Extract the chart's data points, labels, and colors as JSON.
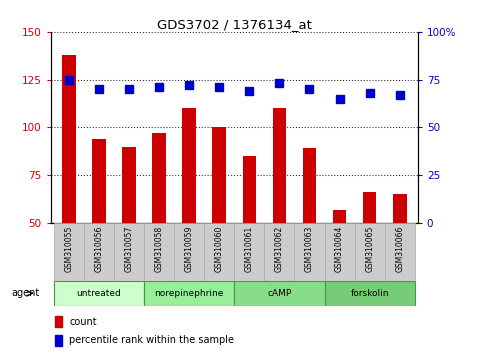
{
  "title": "GDS3702 / 1376134_at",
  "samples": [
    "GSM310055",
    "GSM310056",
    "GSM310057",
    "GSM310058",
    "GSM310059",
    "GSM310060",
    "GSM310061",
    "GSM310062",
    "GSM310063",
    "GSM310064",
    "GSM310065",
    "GSM310066"
  ],
  "counts": [
    138,
    94,
    90,
    97,
    110,
    100,
    85,
    110,
    89,
    57,
    66,
    65
  ],
  "percentiles": [
    75,
    70,
    70,
    71,
    72,
    71,
    69,
    73,
    70,
    65,
    68,
    67
  ],
  "bar_color": "#cc0000",
  "dot_color": "#0000cc",
  "ylim_left": [
    50,
    150
  ],
  "ylim_right": [
    0,
    100
  ],
  "yticks_left": [
    50,
    75,
    100,
    125,
    150
  ],
  "yticks_right": [
    0,
    25,
    50,
    75,
    100
  ],
  "groups": [
    {
      "label": "untreated",
      "start": 0,
      "end": 3,
      "color": "#ccffcc"
    },
    {
      "label": "norepinephrine",
      "start": 3,
      "end": 6,
      "color": "#99ee99"
    },
    {
      "label": "cAMP",
      "start": 6,
      "end": 9,
      "color": "#88dd88"
    },
    {
      "label": "forskolin",
      "start": 9,
      "end": 12,
      "color": "#77cc77"
    }
  ],
  "grid_style": "dotted",
  "grid_color": "#000000",
  "grid_alpha": 0.8,
  "background_sample_row": "#cccccc",
  "agent_label": "agent",
  "legend_count_label": "count",
  "legend_pct_label": "percentile rank within the sample",
  "bar_width": 0.45,
  "dot_size": 6
}
